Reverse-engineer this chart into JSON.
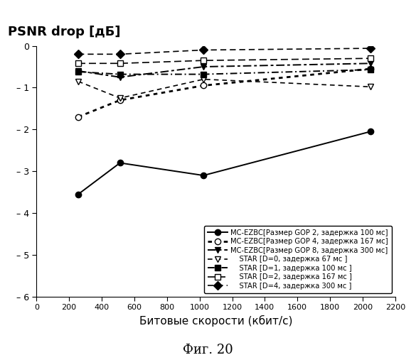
{
  "title": "PSNR drop [дБ]",
  "xlabel": "Битовые скорости (кбит/с)",
  "caption": "Фиг. 20",
  "xlim": [
    0,
    2200
  ],
  "ylim": [
    -6,
    0
  ],
  "xticks": [
    0,
    200,
    400,
    600,
    800,
    1000,
    1200,
    1400,
    1600,
    1800,
    2000,
    2200
  ],
  "ytick_vals": [
    0,
    -1,
    -2,
    -3,
    -4,
    -5,
    -6
  ],
  "ytick_labels": [
    "0",
    "– 1",
    "– 2",
    "– 3",
    "– 4",
    "– 5",
    "– 6"
  ],
  "series": [
    {
      "label_bold": "MC-EZBC",
      "label_normal": "[Размер GOP 2, задержка 100 мс]",
      "x": [
        256,
        512,
        1024,
        2048
      ],
      "y": [
        -3.55,
        -2.8,
        -3.1,
        -2.05
      ],
      "color": "black",
      "linestyle": "-",
      "marker": "o",
      "markerfacecolor": "black",
      "markeredgecolor": "black",
      "markersize": 6,
      "linewidth": 1.4,
      "dashes": null
    },
    {
      "label_bold": "MC-EZBC",
      "label_normal": "[Размер GOP 4, задержка 167 мс]",
      "x": [
        256,
        512,
        1024,
        2048
      ],
      "y": [
        -1.7,
        -1.3,
        -0.95,
        -0.55
      ],
      "color": "black",
      "linestyle": "dotted",
      "marker": "o",
      "markerfacecolor": "white",
      "markeredgecolor": "black",
      "markersize": 6,
      "linewidth": 2.0,
      "dashes": [
        2,
        2
      ]
    },
    {
      "label_bold": "MC-EZBC",
      "label_normal": "[Размер GOP 8, задержка 300 мс]",
      "x": [
        256,
        512,
        1024,
        2048
      ],
      "y": [
        -0.6,
        -0.75,
        -0.5,
        -0.42
      ],
      "color": "black",
      "linestyle": "--",
      "marker": "v",
      "markerfacecolor": "black",
      "markeredgecolor": "black",
      "markersize": 6,
      "linewidth": 1.4,
      "dashes": [
        6,
        2,
        2,
        2
      ]
    },
    {
      "label_bold": "    STAR",
      "label_normal": " [D=0, задержка 67 мс ]",
      "x": [
        256,
        512,
        1024,
        2048
      ],
      "y": [
        -0.85,
        -1.25,
        -0.8,
        -0.98
      ],
      "color": "black",
      "linestyle": "--",
      "marker": "v",
      "markerfacecolor": "white",
      "markeredgecolor": "black",
      "markersize": 6,
      "linewidth": 1.2,
      "dashes": [
        4,
        3
      ]
    },
    {
      "label_bold": "    STAR",
      "label_normal": " [D=1, задержка 100 мс ]",
      "x": [
        256,
        512,
        1024,
        2048
      ],
      "y": [
        -0.62,
        -0.68,
        -0.68,
        -0.57
      ],
      "color": "black",
      "linestyle": "-.",
      "marker": "s",
      "markerfacecolor": "black",
      "markeredgecolor": "black",
      "markersize": 6,
      "linewidth": 1.4,
      "dashes": [
        5,
        2,
        1,
        2
      ]
    },
    {
      "label_bold": "    STAR",
      "label_normal": " [D=2, задержка 167 мс ]",
      "x": [
        256,
        512,
        1024,
        2048
      ],
      "y": [
        -0.42,
        -0.42,
        -0.35,
        -0.3
      ],
      "color": "black",
      "linestyle": "--",
      "marker": "s",
      "markerfacecolor": "white",
      "markeredgecolor": "black",
      "markersize": 6,
      "linewidth": 1.2,
      "dashes": [
        6,
        3
      ]
    },
    {
      "label_bold": "    STAR",
      "label_normal": " [D=4, задержка 300 мс ]",
      "x": [
        256,
        512,
        1024,
        2048
      ],
      "y": [
        -0.2,
        -0.2,
        -0.1,
        -0.06
      ],
      "color": "black",
      "linestyle": "--",
      "marker": "D",
      "markerfacecolor": "black",
      "markeredgecolor": "black",
      "markersize": 6,
      "linewidth": 1.2,
      "dashes": [
        5,
        3
      ]
    }
  ]
}
